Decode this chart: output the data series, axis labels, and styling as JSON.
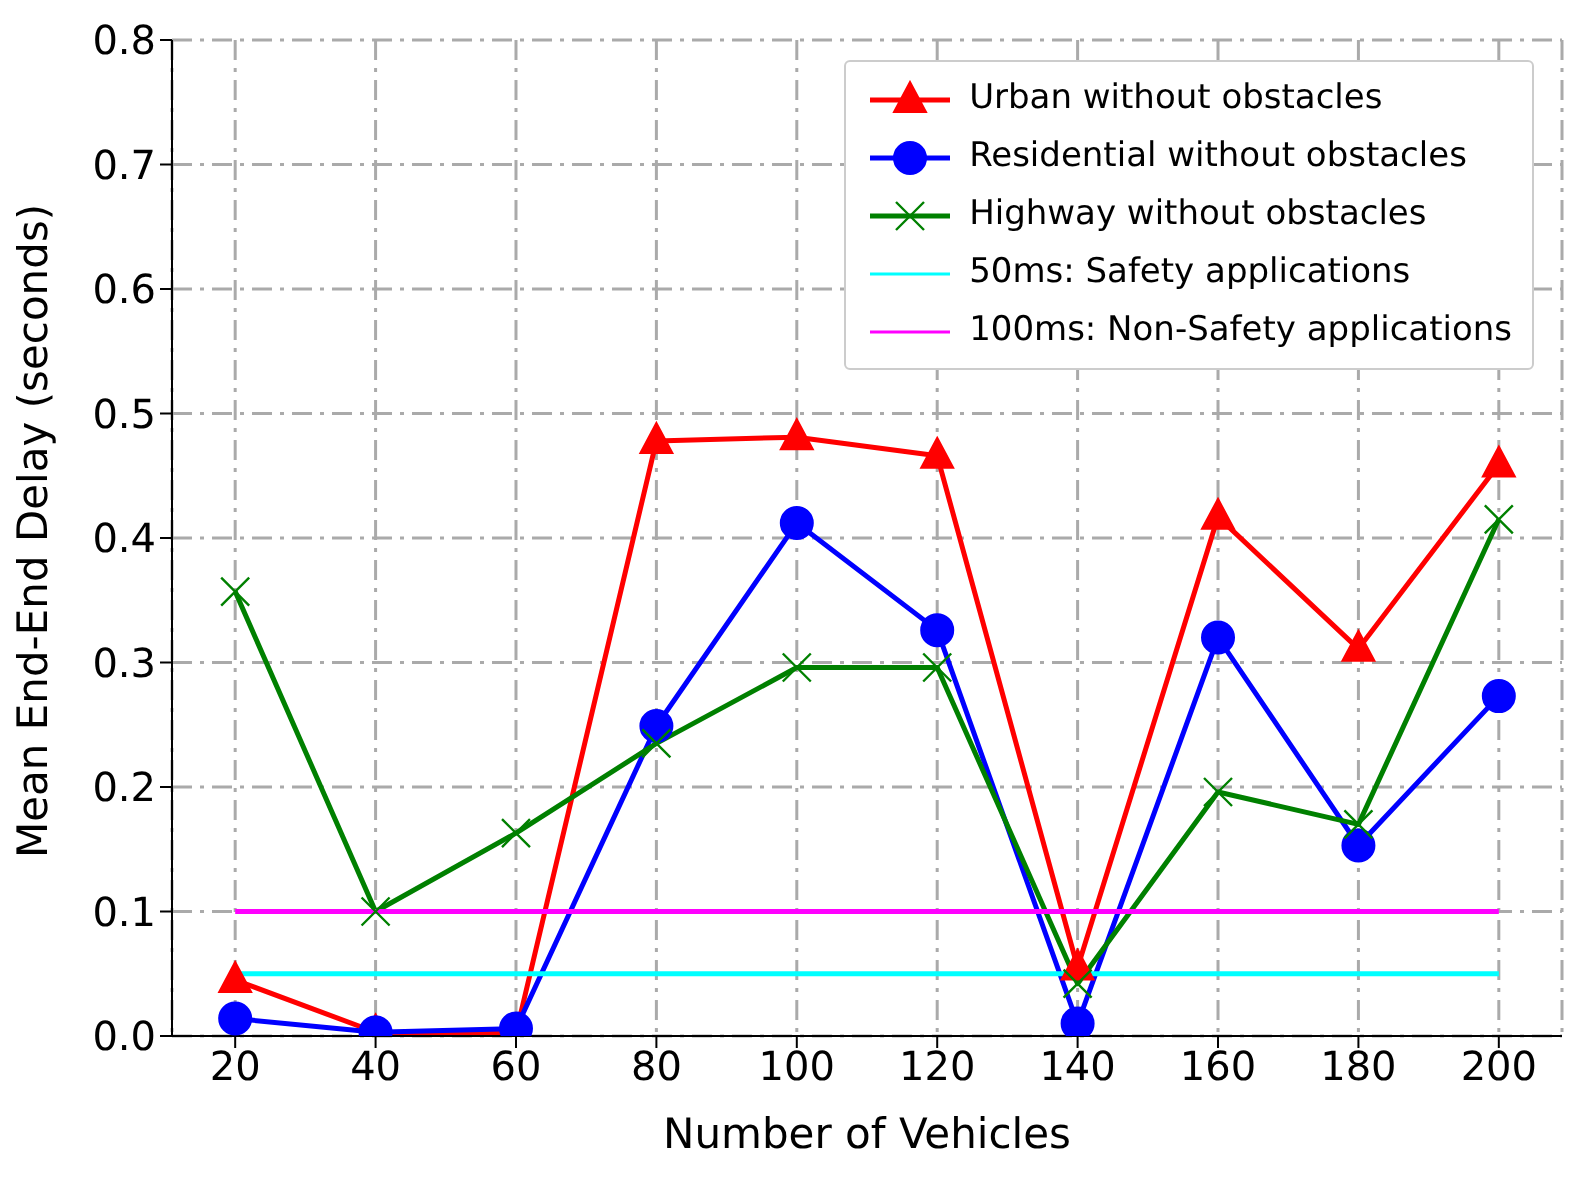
{
  "chart_data": {
    "type": "line",
    "xlabel": "Number of Vehicles",
    "ylabel": "Mean End-End Delay (seconds)",
    "x": [
      20,
      40,
      60,
      80,
      100,
      120,
      140,
      160,
      180,
      200
    ],
    "xlim": [
      11,
      209
    ],
    "xticks": [
      20,
      40,
      60,
      80,
      100,
      120,
      140,
      160,
      180,
      200
    ],
    "ylim": [
      0,
      0.8
    ],
    "yticks": [
      {
        "value": 0,
        "label": "0.0"
      },
      0.1,
      0.2,
      0.3,
      0.4,
      0.5,
      0.6,
      0.7,
      0.8
    ],
    "grid": true,
    "legend": "top right",
    "series": [
      {
        "name": "Urban without obstacles",
        "color": "#ff0000",
        "marker": "triangle",
        "values": [
          0.045,
          0.003,
          0.002,
          0.478,
          0.481,
          0.466,
          0.055,
          0.417,
          0.311,
          0.459
        ]
      },
      {
        "name": "Residential without obstacles",
        "color": "#0000ff",
        "marker": "circle",
        "values": [
          0.014,
          0.003,
          0.006,
          0.249,
          0.412,
          0.326,
          0.01,
          0.32,
          0.153,
          0.273
        ]
      },
      {
        "name": "Highway without obstacles",
        "color": "#008000",
        "marker": "cross",
        "values": [
          0.357,
          0.1,
          0.163,
          0.235,
          0.296,
          0.296,
          0.042,
          0.196,
          0.17,
          0.415
        ]
      },
      {
        "name": "50ms: Safety applications",
        "color": "#00ffff",
        "marker": "none",
        "values": [
          0.05,
          0.05,
          0.05,
          0.05,
          0.05,
          0.05,
          0.05,
          0.05,
          0.05,
          0.05
        ]
      },
      {
        "name": "100ms: Non-Safety applications",
        "color": "#ff00ff",
        "marker": "none",
        "values": [
          0.1,
          0.1,
          0.1,
          0.1,
          0.1,
          0.1,
          0.1,
          0.1,
          0.1,
          0.1
        ]
      }
    ]
  }
}
